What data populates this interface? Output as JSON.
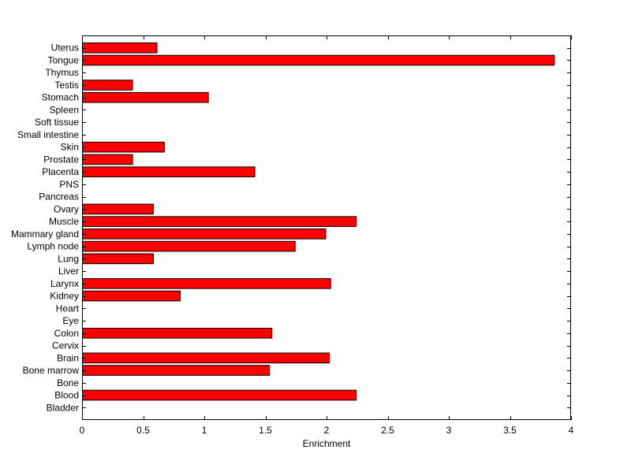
{
  "chart_data": {
    "type": "bar",
    "orientation": "horizontal",
    "categories": [
      "Bladder",
      "Blood",
      "Bone",
      "Bone marrow",
      "Brain",
      "Cervix",
      "Colon",
      "Eye",
      "Heart",
      "Kidney",
      "Larynx",
      "Liver",
      "Lung",
      "Lymph node",
      "Mammary gland",
      "Muscle",
      "Ovary",
      "Pancreas",
      "PNS",
      "Placenta",
      "Prostate",
      "Skin",
      "Small intestine",
      "Soft tissue",
      "Spleen",
      "Stomach",
      "Testis",
      "Thymus",
      "Tongue",
      "Uterus"
    ],
    "values": [
      0,
      2.24,
      0,
      1.53,
      2.02,
      0,
      1.55,
      0,
      0,
      0.8,
      2.03,
      0,
      0.58,
      1.74,
      1.99,
      2.24,
      0.58,
      0,
      0,
      1.41,
      0.41,
      0.67,
      0,
      0,
      0,
      1.03,
      0.41,
      0,
      3.86,
      0.61
    ],
    "xlabel": "Enrichment",
    "ylabel": "",
    "title": "",
    "xlim": [
      0,
      4
    ],
    "xticks": [
      "0",
      "0.5",
      "1",
      "1.5",
      "2",
      "2.5",
      "3",
      "3.5",
      "4"
    ],
    "grid": false,
    "bar_color": "#ff0000",
    "bar_edge_color": "#000000"
  }
}
